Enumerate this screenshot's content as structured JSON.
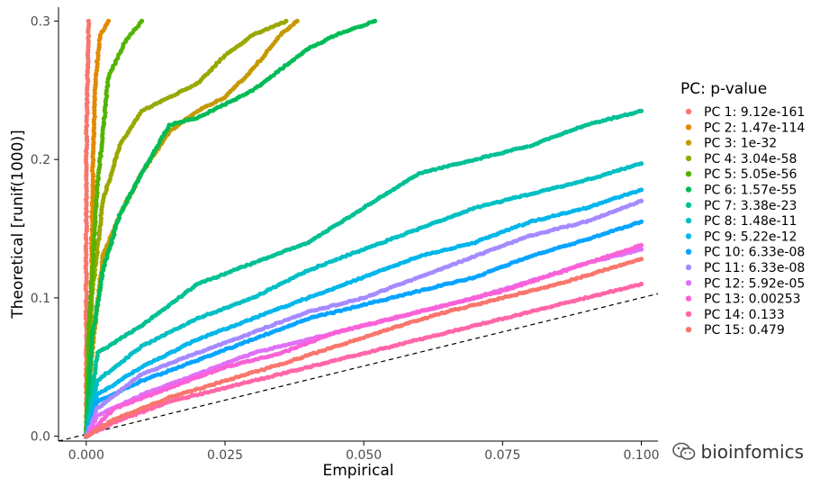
{
  "chart_data": {
    "type": "scatter",
    "xlabel": "Empirical",
    "ylabel": "Theoretical [runif(1000)]",
    "xlim": [
      -0.005,
      0.103
    ],
    "ylim": [
      -0.0035,
      0.31
    ],
    "x_ticks": [
      0,
      0.025,
      0.05,
      0.075,
      0.1
    ],
    "x_tick_labels": [
      "0.000",
      "0.025",
      "0.050",
      "0.075",
      "0.100"
    ],
    "y_ticks": [
      0,
      0.1,
      0.2,
      0.3
    ],
    "y_tick_labels": [
      "0.0",
      "0.1",
      "0.2",
      "0.3"
    ],
    "grid": false,
    "reference_line": {
      "slope": 1,
      "intercept": 0,
      "style": "dashed"
    },
    "legend": {
      "title": "PC: p-value",
      "placement": "right"
    },
    "series": [
      {
        "name": "PC 1: 9.12e-161",
        "color": "#F8766D",
        "points": [
          [
            0,
            0
          ],
          [
            0,
            0.1
          ],
          [
            0,
            0.2
          ],
          [
            0.0002,
            0.25
          ],
          [
            0.0004,
            0.3
          ]
        ]
      },
      {
        "name": "PC 2: 1.47e-114",
        "color": "#E38900",
        "points": [
          [
            0,
            0
          ],
          [
            0.0006,
            0.05
          ],
          [
            0.0009,
            0.1
          ],
          [
            0.0012,
            0.2
          ],
          [
            0.0017,
            0.26
          ],
          [
            0.0025,
            0.29
          ],
          [
            0.004,
            0.3
          ]
        ]
      },
      {
        "name": "PC 3: 1e-32",
        "color": "#C49A00",
        "points": [
          [
            0,
            0
          ],
          [
            0.001,
            0.06
          ],
          [
            0.003,
            0.13
          ],
          [
            0.006,
            0.16
          ],
          [
            0.01,
            0.19
          ],
          [
            0.015,
            0.22
          ],
          [
            0.02,
            0.235
          ],
          [
            0.025,
            0.245
          ],
          [
            0.03,
            0.265
          ],
          [
            0.035,
            0.29
          ],
          [
            0.038,
            0.3
          ]
        ]
      },
      {
        "name": "PC 4: 3.04e-58",
        "color": "#99A800",
        "points": [
          [
            0,
            0
          ],
          [
            0.001,
            0.1
          ],
          [
            0.003,
            0.17
          ],
          [
            0.006,
            0.21
          ],
          [
            0.01,
            0.235
          ],
          [
            0.015,
            0.245
          ],
          [
            0.02,
            0.255
          ],
          [
            0.025,
            0.275
          ],
          [
            0.03,
            0.29
          ],
          [
            0.036,
            0.3
          ]
        ]
      },
      {
        "name": "PC 5: 5.05e-56",
        "color": "#53B400",
        "points": [
          [
            0,
            0
          ],
          [
            0.0005,
            0.08
          ],
          [
            0.002,
            0.18
          ],
          [
            0.004,
            0.26
          ],
          [
            0.007,
            0.285
          ],
          [
            0.01,
            0.3
          ]
        ]
      },
      {
        "name": "PC 6: 1.57e-55",
        "color": "#00BC56",
        "points": [
          [
            0,
            0
          ],
          [
            0.001,
            0.07
          ],
          [
            0.003,
            0.12
          ],
          [
            0.006,
            0.16
          ],
          [
            0.01,
            0.19
          ],
          [
            0.015,
            0.225
          ],
          [
            0.02,
            0.23
          ],
          [
            0.025,
            0.24
          ],
          [
            0.03,
            0.25
          ],
          [
            0.035,
            0.265
          ],
          [
            0.04,
            0.28
          ],
          [
            0.045,
            0.29
          ],
          [
            0.052,
            0.3
          ]
        ]
      },
      {
        "name": "PC 7: 3.38e-23",
        "color": "#00C094",
        "points": [
          [
            0,
            0
          ],
          [
            0.002,
            0.06
          ],
          [
            0.01,
            0.08
          ],
          [
            0.02,
            0.11
          ],
          [
            0.03,
            0.125
          ],
          [
            0.04,
            0.14
          ],
          [
            0.05,
            0.165
          ],
          [
            0.06,
            0.19
          ],
          [
            0.07,
            0.2
          ],
          [
            0.08,
            0.21
          ],
          [
            0.09,
            0.225
          ],
          [
            0.1,
            0.235
          ]
        ]
      },
      {
        "name": "PC 8: 1.48e-11",
        "color": "#00BFC4",
        "points": [
          [
            0,
            0
          ],
          [
            0.002,
            0.04
          ],
          [
            0.01,
            0.065
          ],
          [
            0.02,
            0.085
          ],
          [
            0.03,
            0.1
          ],
          [
            0.04,
            0.12
          ],
          [
            0.05,
            0.135
          ],
          [
            0.06,
            0.15
          ],
          [
            0.07,
            0.165
          ],
          [
            0.08,
            0.175
          ],
          [
            0.09,
            0.185
          ],
          [
            0.1,
            0.197
          ]
        ]
      },
      {
        "name": "PC 9: 5.22e-12",
        "color": "#00B6EB",
        "points": [
          [
            0,
            0
          ],
          [
            0.002,
            0.03
          ],
          [
            0.01,
            0.05
          ],
          [
            0.02,
            0.07
          ],
          [
            0.03,
            0.085
          ],
          [
            0.04,
            0.1
          ],
          [
            0.05,
            0.115
          ],
          [
            0.06,
            0.13
          ],
          [
            0.07,
            0.14
          ],
          [
            0.08,
            0.155
          ],
          [
            0.09,
            0.165
          ],
          [
            0.1,
            0.178
          ]
        ]
      },
      {
        "name": "PC 10: 6.33e-08",
        "color": "#06A4FF",
        "points": [
          [
            0,
            0
          ],
          [
            0.002,
            0.025
          ],
          [
            0.01,
            0.04
          ],
          [
            0.02,
            0.055
          ],
          [
            0.03,
            0.07
          ],
          [
            0.04,
            0.085
          ],
          [
            0.05,
            0.095
          ],
          [
            0.06,
            0.105
          ],
          [
            0.07,
            0.115
          ],
          [
            0.08,
            0.13
          ],
          [
            0.09,
            0.142
          ],
          [
            0.1,
            0.155
          ]
        ]
      },
      {
        "name": "PC 11: 6.33e-08",
        "color": "#A58AFF",
        "points": [
          [
            0,
            0
          ],
          [
            0.002,
            0.02
          ],
          [
            0.01,
            0.045
          ],
          [
            0.02,
            0.06
          ],
          [
            0.03,
            0.075
          ],
          [
            0.04,
            0.09
          ],
          [
            0.05,
            0.1
          ],
          [
            0.06,
            0.115
          ],
          [
            0.07,
            0.13
          ],
          [
            0.08,
            0.145
          ],
          [
            0.09,
            0.155
          ],
          [
            0.1,
            0.17
          ]
        ]
      },
      {
        "name": "PC 12: 5.92e-05",
        "color": "#DF70F8",
        "points": [
          [
            0,
            0
          ],
          [
            0.002,
            0.015
          ],
          [
            0.01,
            0.03
          ],
          [
            0.02,
            0.045
          ],
          [
            0.03,
            0.06
          ],
          [
            0.04,
            0.07
          ],
          [
            0.05,
            0.08
          ],
          [
            0.06,
            0.09
          ],
          [
            0.07,
            0.1
          ],
          [
            0.08,
            0.112
          ],
          [
            0.09,
            0.125
          ],
          [
            0.1,
            0.135
          ]
        ]
      },
      {
        "name": "PC 13: 0.00253",
        "color": "#FB61D7",
        "points": [
          [
            0,
            0
          ],
          [
            0.005,
            0.02
          ],
          [
            0.015,
            0.035
          ],
          [
            0.025,
            0.05
          ],
          [
            0.035,
            0.06
          ],
          [
            0.045,
            0.075
          ],
          [
            0.055,
            0.085
          ],
          [
            0.065,
            0.095
          ],
          [
            0.075,
            0.105
          ],
          [
            0.085,
            0.118
          ],
          [
            0.1,
            0.138
          ]
        ]
      },
      {
        "name": "PC 14: 0.133",
        "color": "#FF66A8",
        "points": [
          [
            0,
            0
          ],
          [
            0.005,
            0.01
          ],
          [
            0.015,
            0.025
          ],
          [
            0.025,
            0.035
          ],
          [
            0.035,
            0.045
          ],
          [
            0.045,
            0.055
          ],
          [
            0.055,
            0.065
          ],
          [
            0.065,
            0.075
          ],
          [
            0.075,
            0.085
          ],
          [
            0.085,
            0.095
          ],
          [
            0.1,
            0.11
          ]
        ]
      },
      {
        "name": "PC 15: 0.479",
        "color": "#F8766D",
        "points": [
          [
            0,
            0
          ],
          [
            0.005,
            0.012
          ],
          [
            0.015,
            0.028
          ],
          [
            0.025,
            0.04
          ],
          [
            0.035,
            0.052
          ],
          [
            0.045,
            0.065
          ],
          [
            0.055,
            0.078
          ],
          [
            0.065,
            0.09
          ],
          [
            0.075,
            0.1
          ],
          [
            0.085,
            0.11
          ],
          [
            0.1,
            0.128
          ]
        ]
      }
    ]
  },
  "watermark": {
    "text": "bioinfomics",
    "icon": "wechat-icon"
  }
}
